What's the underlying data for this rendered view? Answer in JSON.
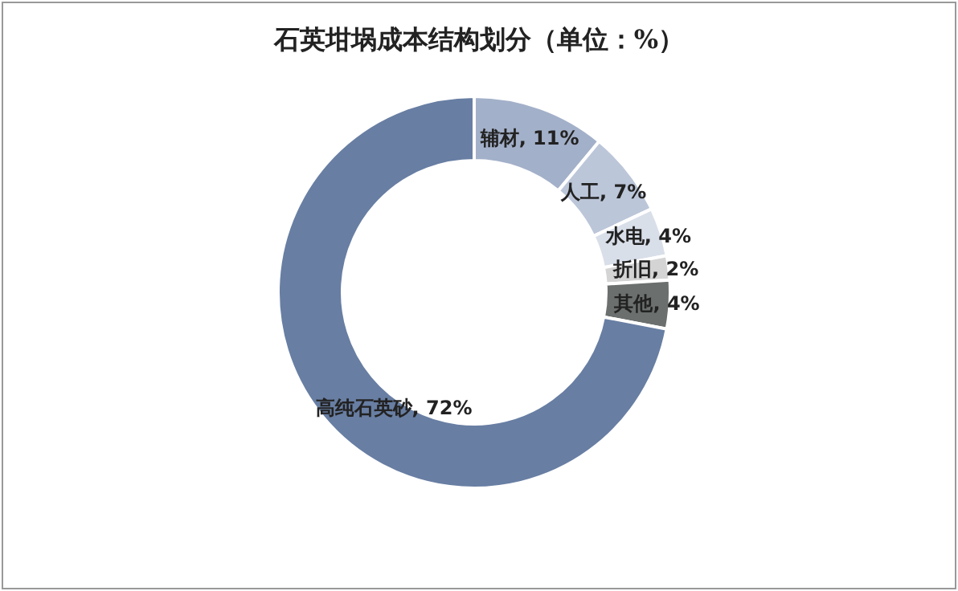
{
  "chart_data": {
    "type": "donut",
    "title": "石英坩埚成本结构划分（单位：%）",
    "categories": [
      "辅材",
      "人工",
      "水电",
      "折旧",
      "其他",
      "高纯石英砂"
    ],
    "values": [
      11,
      7,
      4,
      2,
      4,
      72
    ],
    "value_labels": [
      "11%",
      "7%",
      "4%",
      "2%",
      "4%",
      "72%"
    ],
    "colors": [
      "#a3b0c9",
      "#bcc6d9",
      "#d9dfe9",
      "#d4d4d4",
      "#6b6f6e",
      "#687ea3"
    ],
    "legend": false
  }
}
